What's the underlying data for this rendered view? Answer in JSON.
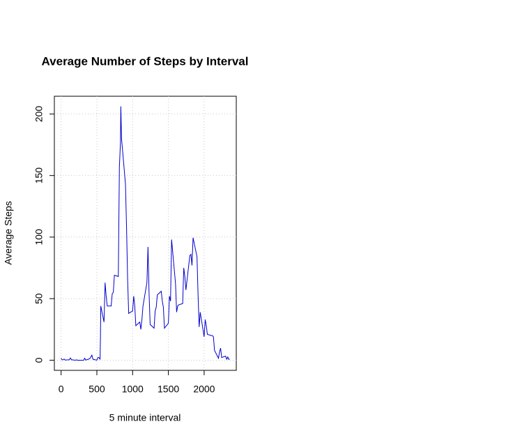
{
  "chart_data": {
    "type": "line",
    "title": "Average Number of Steps by Interval",
    "xlabel": "5 minute interval",
    "ylabel": "Average Steps",
    "color": "#0000cd",
    "grid": true,
    "xlim": [
      -94.2,
      2449.2
    ],
    "ylim": [
      -8.25,
      214.4
    ],
    "xticks": [
      0,
      500,
      1000,
      1500,
      2000
    ],
    "yticks": [
      0,
      50,
      100,
      150,
      200
    ],
    "x": [
      0,
      15,
      30,
      45,
      55,
      100,
      115,
      130,
      145,
      200,
      215,
      230,
      245,
      300,
      315,
      330,
      345,
      400,
      415,
      430,
      445,
      500,
      515,
      530,
      545,
      550,
      555,
      600,
      615,
      630,
      645,
      700,
      715,
      730,
      745,
      800,
      815,
      830,
      835,
      845,
      900,
      915,
      930,
      945,
      1000,
      1015,
      1030,
      1045,
      1100,
      1115,
      1130,
      1145,
      1200,
      1215,
      1230,
      1245,
      1300,
      1315,
      1330,
      1345,
      1400,
      1415,
      1430,
      1445,
      1500,
      1515,
      1530,
      1545,
      1600,
      1615,
      1630,
      1645,
      1700,
      1715,
      1730,
      1745,
      1800,
      1815,
      1830,
      1845,
      1900,
      1915,
      1930,
      1945,
      2000,
      2015,
      2030,
      2045,
      2100,
      2115,
      2130,
      2145,
      2200,
      2215,
      2230,
      2245,
      2300,
      2315,
      2330,
      2345,
      2355
    ],
    "values": [
      1.7,
      0.2,
      0.5,
      0.9,
      0.1,
      0.3,
      0.3,
      1.8,
      0.4,
      0,
      0.3,
      0,
      0,
      0,
      0,
      1.6,
      0.1,
      1.2,
      2.6,
      4.1,
      0.8,
      0,
      2.2,
      2.1,
      0.9,
      18,
      44,
      31,
      63,
      52,
      44,
      44,
      54,
      55,
      69,
      68,
      157,
      177,
      206.2,
      180,
      143,
      108,
      66,
      38,
      40,
      52,
      44,
      28,
      31,
      25,
      33,
      44,
      63,
      92,
      54,
      29,
      26,
      40,
      43,
      53,
      56,
      48,
      43,
      26,
      30,
      52,
      48,
      98,
      62,
      39,
      44,
      45,
      46,
      75,
      68,
      57,
      85,
      86,
      77,
      99.5,
      84,
      53,
      27,
      39,
      19,
      33,
      28,
      21,
      20,
      20,
      19,
      8,
      1.6,
      6.6,
      9.8,
      2.2,
      3.3,
      0.8,
      2.6,
      0.6,
      1.1
    ]
  }
}
